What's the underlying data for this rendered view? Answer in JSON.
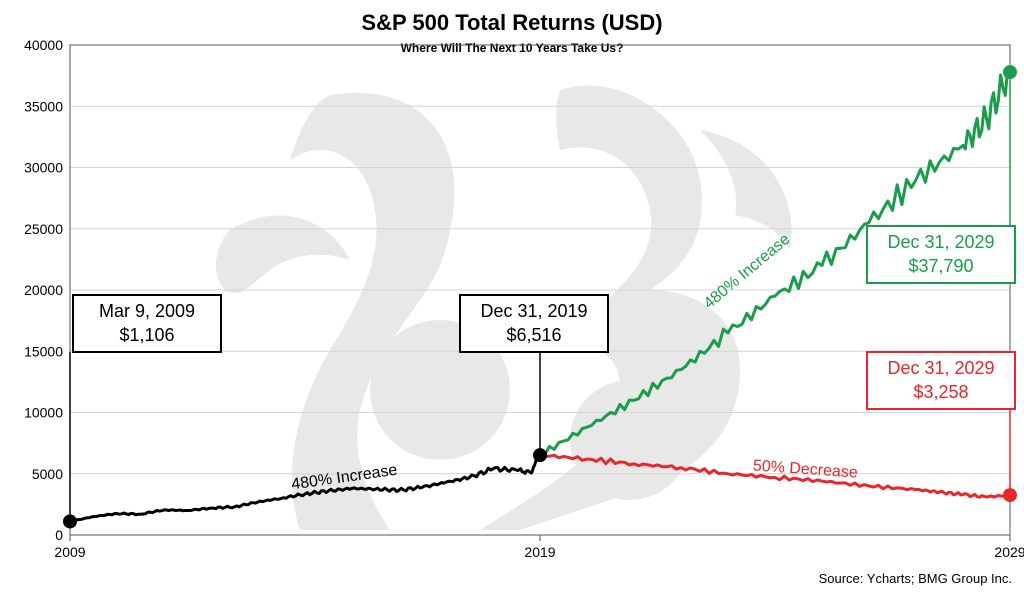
{
  "chart_data": {
    "type": "line",
    "title": "S&P 500 Total Returns (USD)",
    "subtitle": "Where Will The Next 10 Years Take Us?",
    "xlabel": "",
    "ylabel": "",
    "xlim": [
      2009,
      2029
    ],
    "ylim": [
      0,
      40000
    ],
    "yticks": [
      0,
      5000,
      10000,
      15000,
      20000,
      25000,
      30000,
      35000,
      40000
    ],
    "ytick_labels": [
      "0",
      "5000",
      "10000",
      "15000",
      "20000",
      "25000",
      "30000",
      "35000",
      "40000"
    ],
    "xtick_labels": [
      "2009",
      "2019",
      "2029"
    ],
    "xticks": [
      2009,
      2019,
      2029
    ],
    "grid": true,
    "legend": "none",
    "series": [
      {
        "color": "#000000",
        "x": [
          2009.0,
          2009.5,
          2010.0,
          2010.5,
          2011.0,
          2011.5,
          2012.0,
          2012.5,
          2013.0,
          2013.5,
          2014.0,
          2014.5,
          2015.0,
          2015.5,
          2016.0,
          2016.5,
          2017.0,
          2017.5,
          2018.0,
          2018.5,
          2018.8,
          2019.0
        ],
        "values": [
          1106,
          1500,
          1750,
          1700,
          2050,
          2000,
          2200,
          2300,
          2700,
          3000,
          3350,
          3600,
          3800,
          3750,
          3650,
          3900,
          4300,
          4700,
          5400,
          5300,
          5100,
          6516
        ]
      },
      {
        "color": "#1a9d4a",
        "x": [
          2019.0,
          2020.0,
          2021.0,
          2022.0,
          2023.0,
          2024.0,
          2025.0,
          2026.0,
          2027.0,
          2028.0,
          2028.5,
          2029.0
        ],
        "values": [
          6516,
          8800,
          11000,
          13500,
          16500,
          19500,
          22000,
          25500,
          29000,
          31800,
          34000,
          37790
        ]
      },
      {
        "color": "#e8262b",
        "x": [
          2019.0,
          2020.0,
          2021.0,
          2022.0,
          2023.0,
          2024.0,
          2025.0,
          2026.0,
          2027.0,
          2027.5,
          2028.0,
          2028.5,
          2029.0
        ],
        "values": [
          6516,
          6200,
          5800,
          5500,
          5000,
          4700,
          4400,
          4000,
          3700,
          3500,
          3300,
          3100,
          3258
        ]
      }
    ],
    "annotations": [
      {
        "type": "label_box",
        "x": 2009.0,
        "y": 1106,
        "line1": "Mar 9, 2009",
        "line2": "$1,106",
        "color": "#000000"
      },
      {
        "type": "label_box",
        "x": 2019.0,
        "y": 6516,
        "line1": "Dec 31, 2019",
        "line2": "$6,516",
        "color": "#000000"
      },
      {
        "type": "label_box",
        "x": 2029.0,
        "y": 37790,
        "line1": "Dec 31, 2029",
        "line2": "$37,790",
        "color": "#1a9d4a"
      },
      {
        "type": "label_box",
        "x": 2029.0,
        "y": 3258,
        "line1": "Dec 31, 2029",
        "line2": "$3,258",
        "color": "#e8262b"
      },
      {
        "type": "text",
        "text": "480% Increase",
        "color": "#000000"
      },
      {
        "type": "text",
        "text": "480% Increase",
        "color": "#1a9d4a"
      },
      {
        "type": "text",
        "text": "50% Decrease",
        "color": "#e8262b"
      }
    ],
    "source": "Source: Ycharts; BMG Group Inc."
  }
}
